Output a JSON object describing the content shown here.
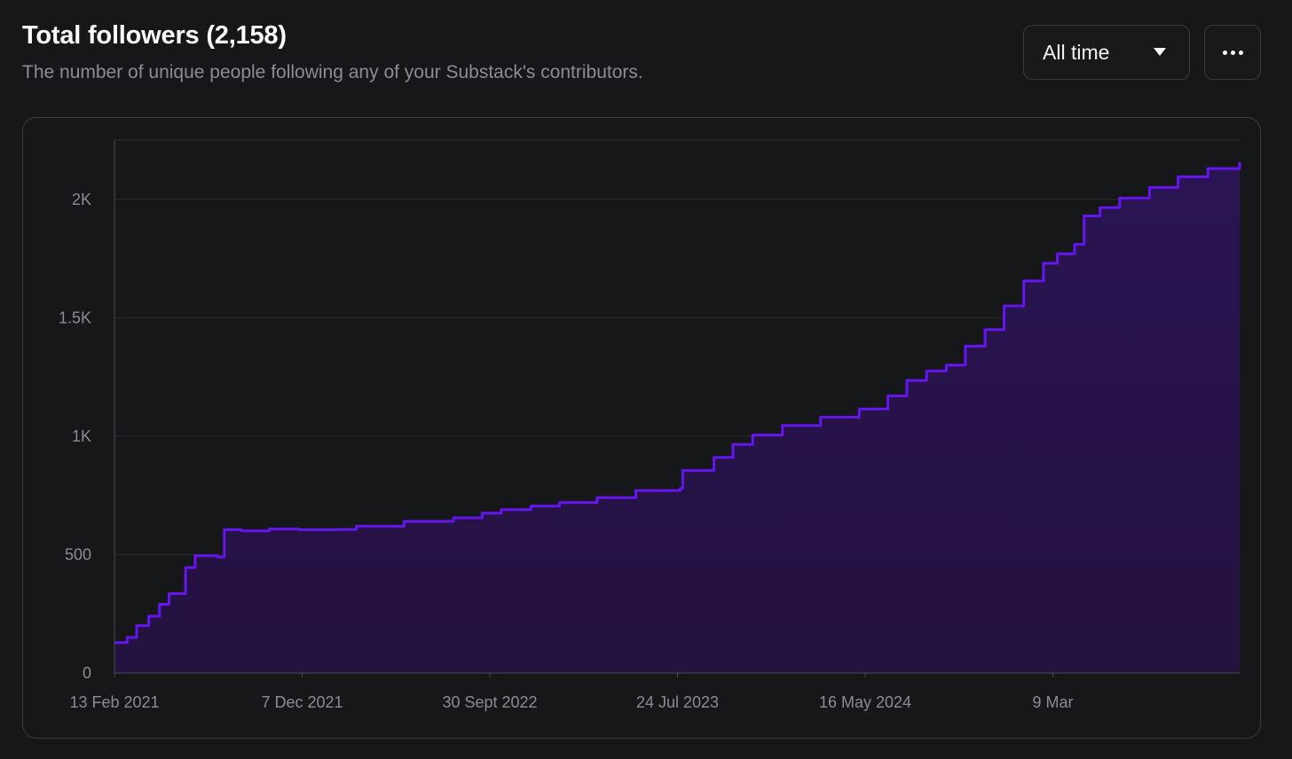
{
  "header": {
    "title": "Total followers (2,158)",
    "subtitle": "The number of unique people following any of your Substack's contributors."
  },
  "controls": {
    "range_select": {
      "selected": "All time",
      "icon": "triangle-down-icon"
    },
    "more_button": {
      "icon": "ellipsis-icon"
    }
  },
  "colors": {
    "line": "#6516f0",
    "area": "#2a1454",
    "grid": "#2c2d31",
    "text_muted": "#8c8c92"
  },
  "chart_data": {
    "type": "area",
    "title": "Total followers (2,158)",
    "xlabel": "",
    "ylabel": "",
    "x_ticks": [
      "13 Feb 2021",
      "7 Dec 2021",
      "30 Sept 2022",
      "24 Jul 2023",
      "16 May 2024",
      "9 Mar"
    ],
    "y_ticks": [
      "0",
      "500",
      "1K",
      "1.5K",
      "2K"
    ],
    "ylim": [
      0,
      2250
    ],
    "xlim": [
      "2021-02-13",
      "2025-12-21"
    ],
    "grid": true,
    "legend": "none",
    "interpolation": "step",
    "series": [
      {
        "points": [
          [
            "2021-02-13",
            128
          ],
          [
            "2021-03-05",
            150
          ],
          [
            "2021-03-20",
            200
          ],
          [
            "2021-04-08",
            240
          ],
          [
            "2021-04-25",
            290
          ],
          [
            "2021-05-10",
            335
          ],
          [
            "2021-06-05",
            445
          ],
          [
            "2021-06-20",
            495
          ],
          [
            "2021-07-25",
            490
          ],
          [
            "2021-08-05",
            605
          ],
          [
            "2021-09-01",
            600
          ],
          [
            "2021-10-15",
            608
          ],
          [
            "2021-12-01",
            605
          ],
          [
            "2022-02-01",
            606
          ],
          [
            "2022-03-01",
            620
          ],
          [
            "2022-05-15",
            640
          ],
          [
            "2022-07-01",
            640
          ],
          [
            "2022-08-01",
            655
          ],
          [
            "2022-09-15",
            675
          ],
          [
            "2022-10-15",
            690
          ],
          [
            "2022-12-01",
            705
          ],
          [
            "2023-01-15",
            720
          ],
          [
            "2023-03-15",
            740
          ],
          [
            "2023-05-15",
            770
          ],
          [
            "2023-07-24",
            780
          ],
          [
            "2023-07-28",
            855
          ],
          [
            "2023-09-15",
            910
          ],
          [
            "2023-10-15",
            965
          ],
          [
            "2023-11-15",
            1005
          ],
          [
            "2024-01-01",
            1045
          ],
          [
            "2024-03-01",
            1080
          ],
          [
            "2024-05-01",
            1115
          ],
          [
            "2024-06-15",
            1170
          ],
          [
            "2024-07-15",
            1235
          ],
          [
            "2024-08-15",
            1275
          ],
          [
            "2024-09-15",
            1300
          ],
          [
            "2024-10-15",
            1380
          ],
          [
            "2024-11-15",
            1450
          ],
          [
            "2024-12-15",
            1550
          ],
          [
            "2025-01-15",
            1655
          ],
          [
            "2025-02-15",
            1730
          ],
          [
            "2025-03-09",
            1770
          ],
          [
            "2025-04-05",
            1810
          ],
          [
            "2025-04-20",
            1930
          ],
          [
            "2025-05-15",
            1965
          ],
          [
            "2025-06-15",
            2005
          ],
          [
            "2025-08-01",
            2050
          ],
          [
            "2025-09-15",
            2095
          ],
          [
            "2025-11-01",
            2130
          ],
          [
            "2025-12-21",
            2158
          ]
        ]
      }
    ]
  }
}
